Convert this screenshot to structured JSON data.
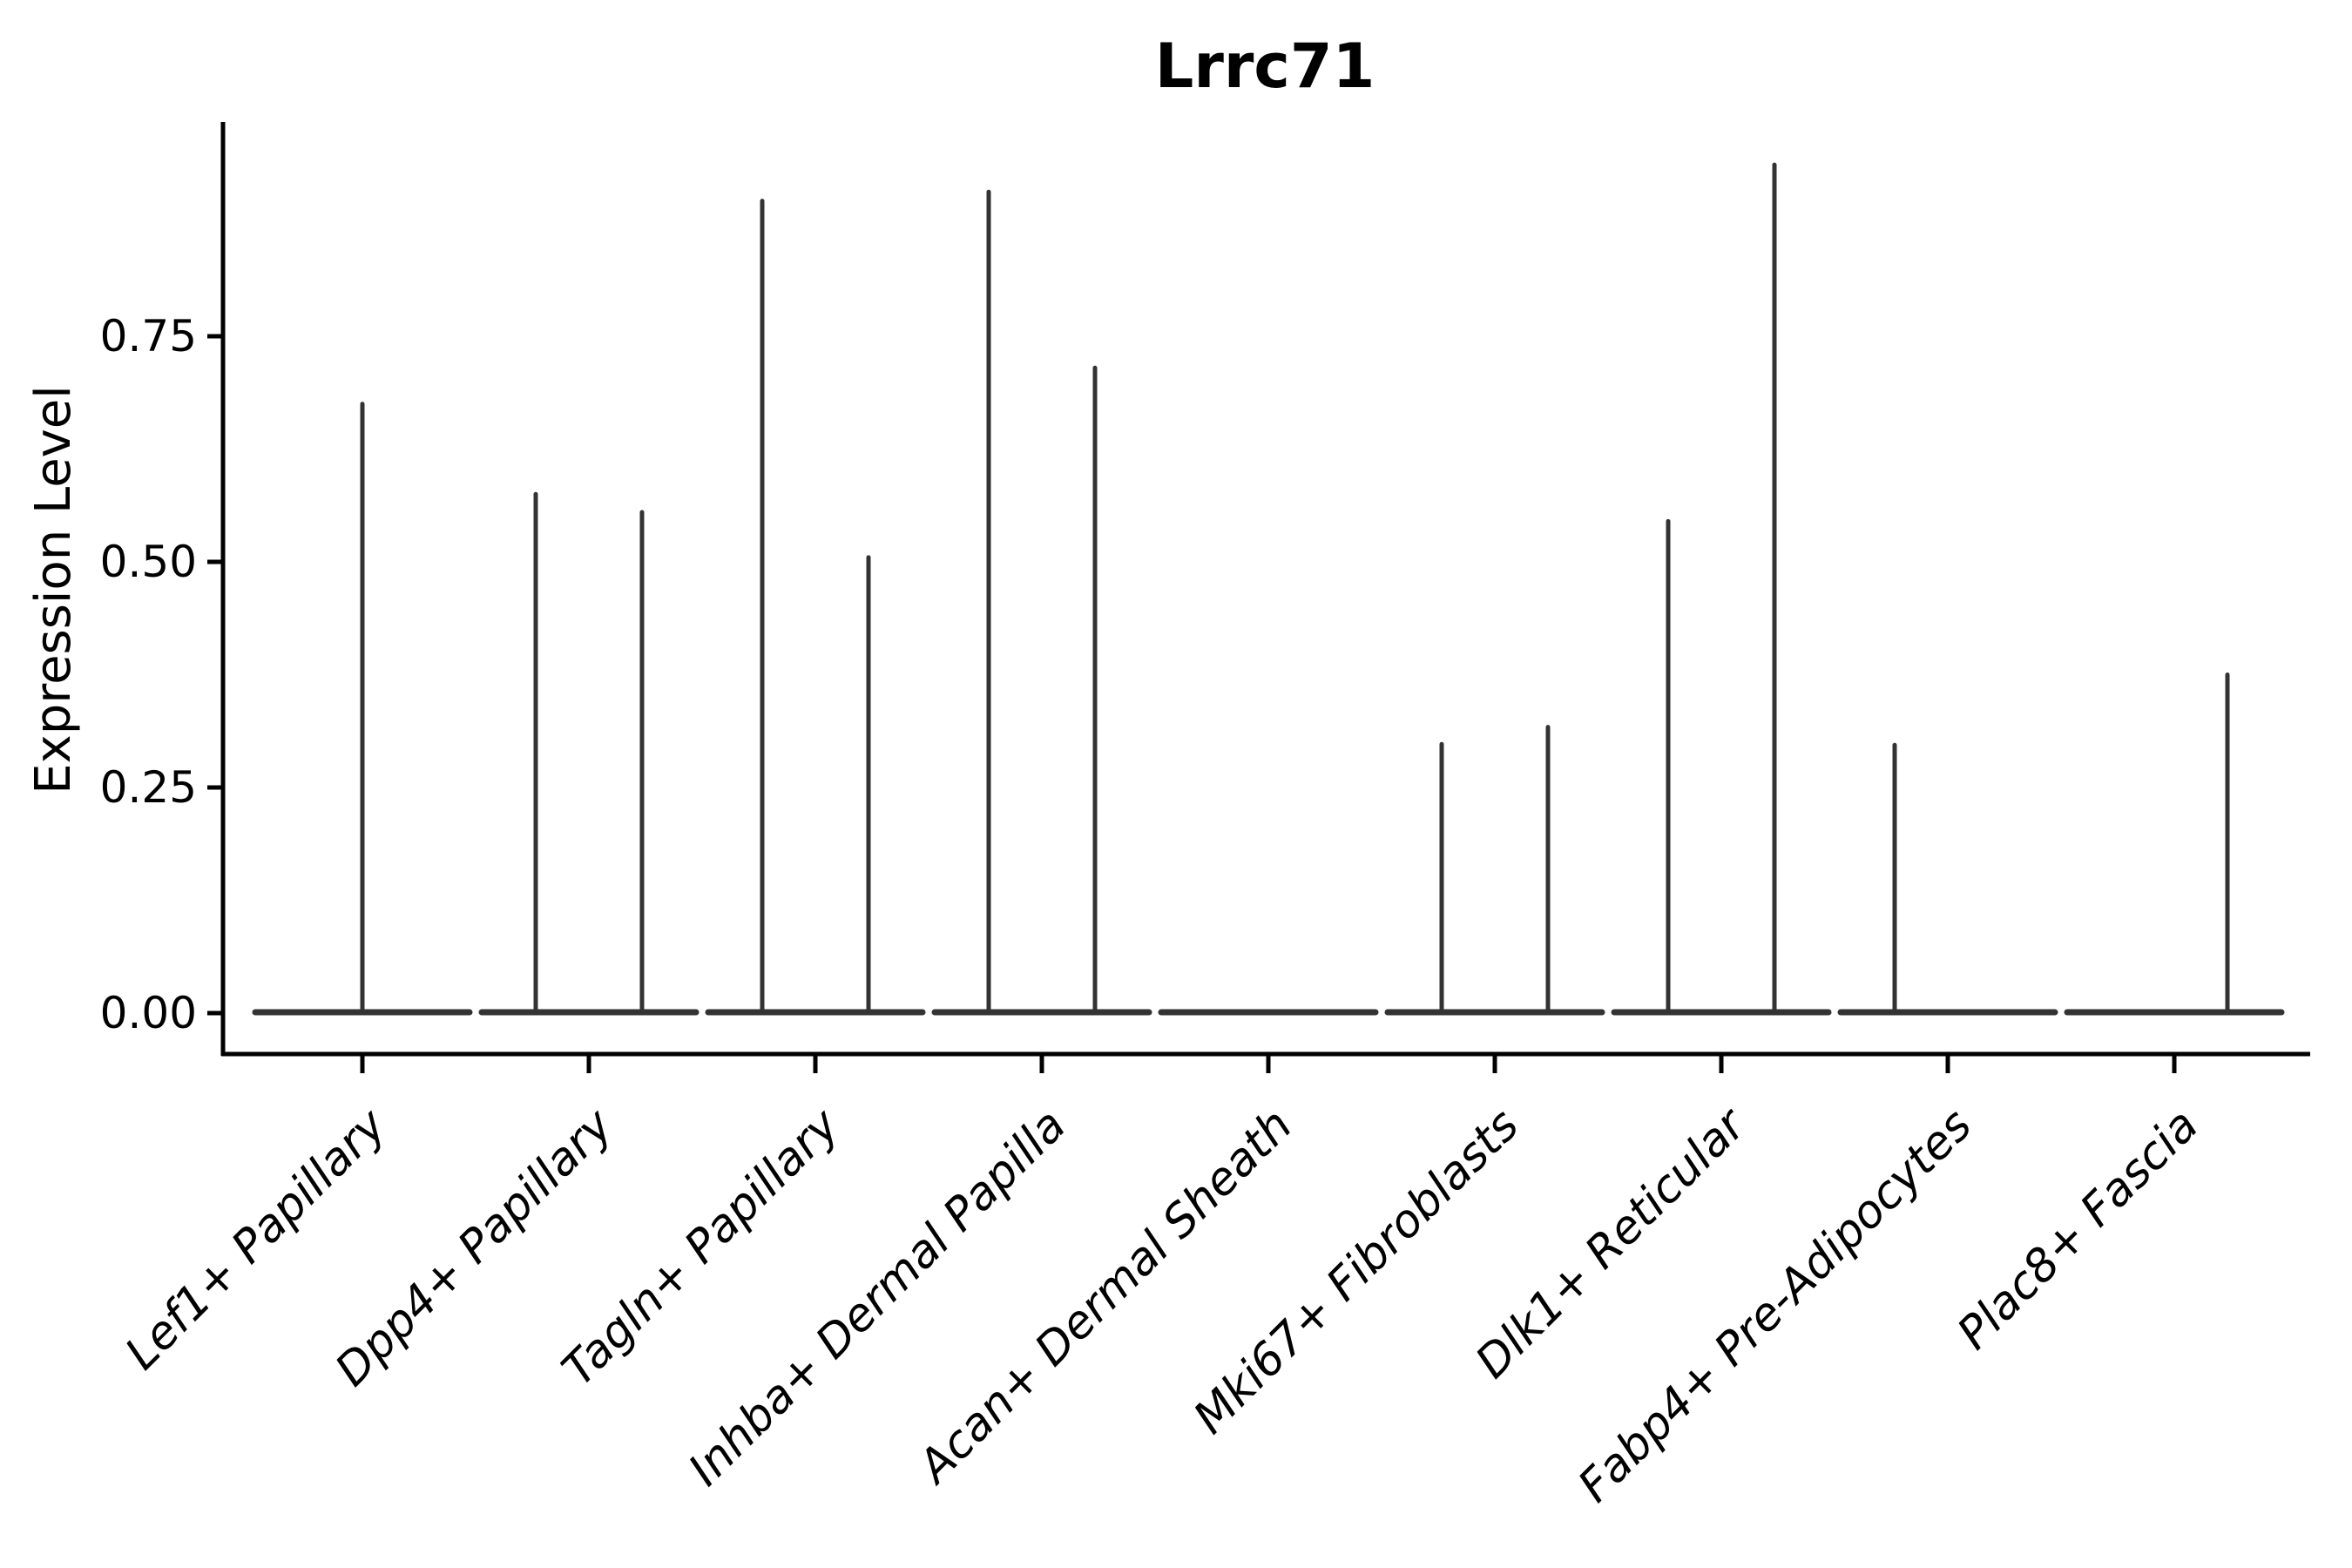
{
  "chart_data": {
    "type": "violin",
    "title": "Lrrc71",
    "xlabel": "",
    "ylabel": "Expression Level",
    "ylim": [
      0,
      0.99
    ],
    "grid": false,
    "legend": null,
    "ytick_values": [
      0,
      0.25,
      0.5,
      0.75
    ],
    "ytick_labels": [
      "0.00",
      "0.25",
      "0.50",
      "0.75"
    ],
    "categories": [
      "Lef1+ Papillary",
      "Dpp4+ Papillary",
      "Tagln+ Papillary",
      "Inhba+ Dermal Papilla",
      "Acan+ Dermal Sheath",
      "Mki67+ Fibroblasts",
      "Dlk1+ Reticular",
      "Fabp4+ Pre-Adipocytes",
      "Plac8+ Fascia"
    ],
    "violins": [
      {
        "category": "Lef1+ Papillary",
        "baseline_value": 0,
        "spikes": [
          {
            "slot": "center",
            "max": 0.675
          }
        ]
      },
      {
        "category": "Dpp4+ Papillary",
        "baseline_value": 0,
        "spikes": [
          {
            "slot": "left",
            "max": 0.575
          },
          {
            "slot": "right",
            "max": 0.555
          }
        ]
      },
      {
        "category": "Tagln+ Papillary",
        "baseline_value": 0,
        "spikes": [
          {
            "slot": "left",
            "max": 0.9
          },
          {
            "slot": "right",
            "max": 0.505
          }
        ]
      },
      {
        "category": "Inhba+ Dermal Papilla",
        "baseline_value": 0,
        "spikes": [
          {
            "slot": "left",
            "max": 0.91
          },
          {
            "slot": "right",
            "max": 0.715
          }
        ]
      },
      {
        "category": "Acan+ Dermal Sheath",
        "baseline_value": 0,
        "spikes": []
      },
      {
        "category": "Mki67+ Fibroblasts",
        "baseline_value": 0,
        "spikes": [
          {
            "slot": "left",
            "max": 0.298
          },
          {
            "slot": "right",
            "max": 0.317
          }
        ]
      },
      {
        "category": "Dlk1+ Reticular",
        "baseline_value": 0,
        "spikes": [
          {
            "slot": "left",
            "max": 0.545
          },
          {
            "slot": "right",
            "max": 0.94
          }
        ]
      },
      {
        "category": "Fabp4+ Pre-Adipocytes",
        "baseline_value": 0,
        "spikes": [
          {
            "slot": "left",
            "max": 0.297
          }
        ]
      },
      {
        "category": "Plac8+ Fascia",
        "baseline_value": 0,
        "spikes": [
          {
            "slot": "right",
            "max": 0.375
          }
        ]
      }
    ],
    "colors": {
      "violin": "#333333",
      "axis": "#000000",
      "text": "#000000",
      "background": "#ffffff"
    }
  }
}
